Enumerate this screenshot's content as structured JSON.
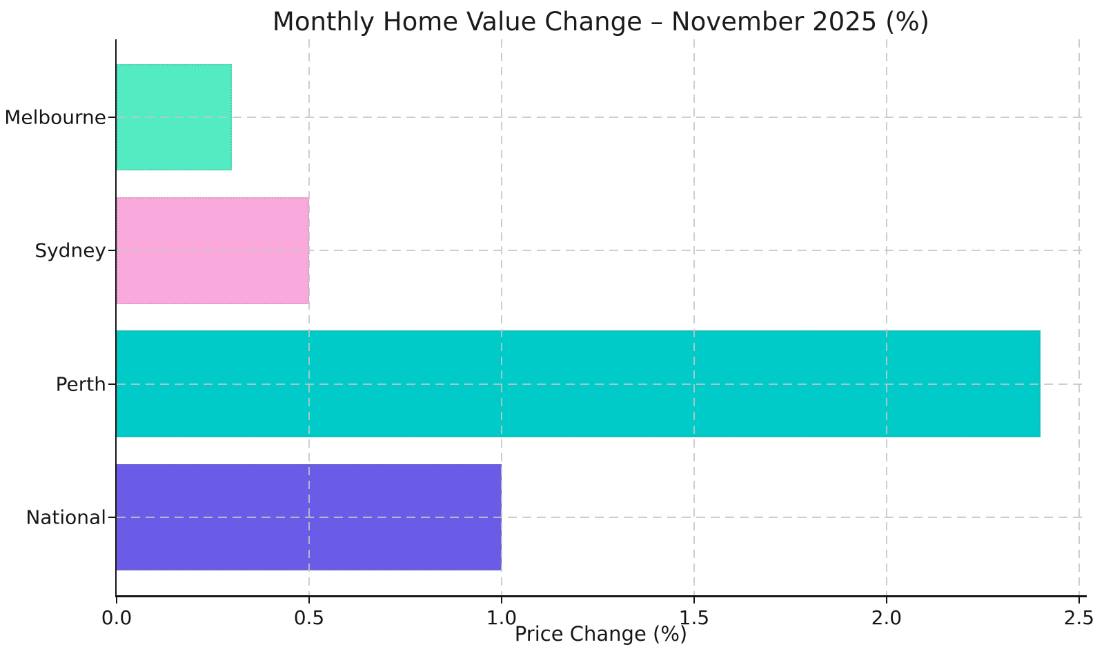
{
  "chart_data": {
    "type": "bar",
    "orientation": "horizontal",
    "title": "Monthly Home Value Change – November 2025 (%)",
    "xlabel": "Price Change (%)",
    "ylabel": "",
    "categories": [
      "Melbourne",
      "Sydney",
      "Perth",
      "National"
    ],
    "values": [
      0.3,
      0.5,
      2.4,
      1.0
    ],
    "bar_colors": [
      "#53ebc2",
      "#faa9dd",
      "#00cbc8",
      "#6a5ce6"
    ],
    "xticks": [
      0.0,
      0.5,
      1.0,
      1.5,
      2.0,
      2.5
    ],
    "xtick_labels": [
      "0.0",
      "0.5",
      "1.0",
      "1.5",
      "2.0",
      "2.5"
    ],
    "xlim": [
      0,
      2.52
    ],
    "grid": true,
    "grid_style": "dashed",
    "grid_color": "#c5c5c5",
    "legend_position": "none",
    "background_color": "#ffffff",
    "text_color": "#161616"
  }
}
